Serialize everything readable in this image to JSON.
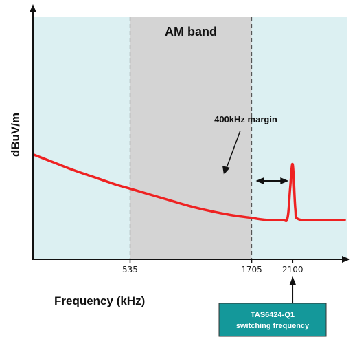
{
  "chart_data": {
    "type": "line",
    "ylabel": "dBuV/m",
    "xlabel": "Frequency (kHz)",
    "x_ticks": [
      535,
      1705,
      2100
    ],
    "band": {
      "label": "AM band",
      "from": 535,
      "to": 1705
    },
    "margin_annotation": {
      "label": "400kHz margin",
      "from": 1705,
      "to": 2100
    },
    "callout": {
      "line1": "TAS6424-Q1",
      "line2": "switching frequency",
      "at": 2100
    },
    "series": [
      {
        "values_note": "",
        "x": [
          -400,
          -200,
          0,
          200,
          400,
          535,
          700,
          900,
          1100,
          1300,
          1500,
          1705,
          1850,
          2000,
          2050,
          2075,
          2100,
          2125,
          2150,
          2300,
          2600
        ],
        "y": [
          52,
          48,
          44,
          40.5,
          37,
          35,
          32.5,
          29.5,
          26.5,
          24,
          22,
          20.5,
          19.5,
          19.5,
          20.5,
          35,
          47,
          25,
          20,
          19.5,
          19.5
        ]
      }
    ],
    "xlim": [
      -400,
      2620
    ],
    "ylim": [
      0,
      120
    ],
    "colors": {
      "plot_background": "#dcf0f2",
      "band_fill": "#d4d4d4",
      "line": "#ee2222",
      "callout_fill": "#14989a",
      "axis": "#111111"
    }
  }
}
